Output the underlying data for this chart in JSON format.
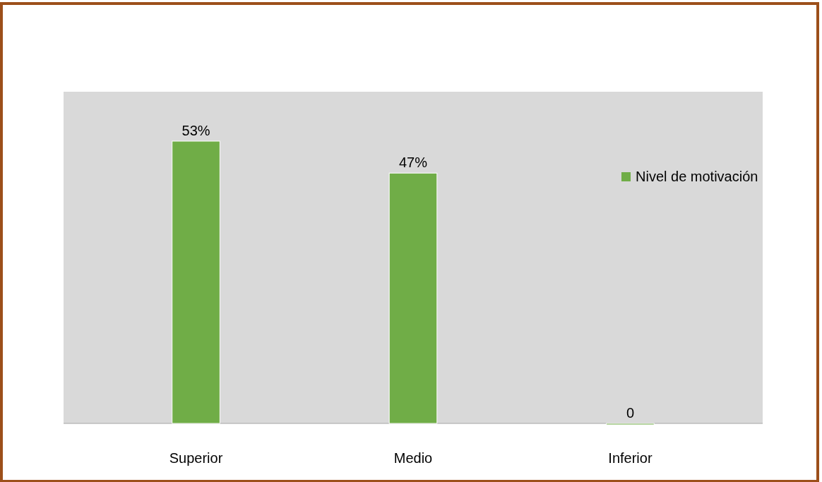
{
  "chart_data": {
    "type": "bar",
    "categories": [
      "Superior",
      "Medio",
      "Inferior"
    ],
    "series": [
      {
        "name": "Nivel de motivación",
        "color": "#70ad47",
        "values": [
          53,
          47,
          0
        ],
        "value_labels": [
          "53%",
          "47%",
          "0"
        ]
      }
    ],
    "legend": "right"
  }
}
